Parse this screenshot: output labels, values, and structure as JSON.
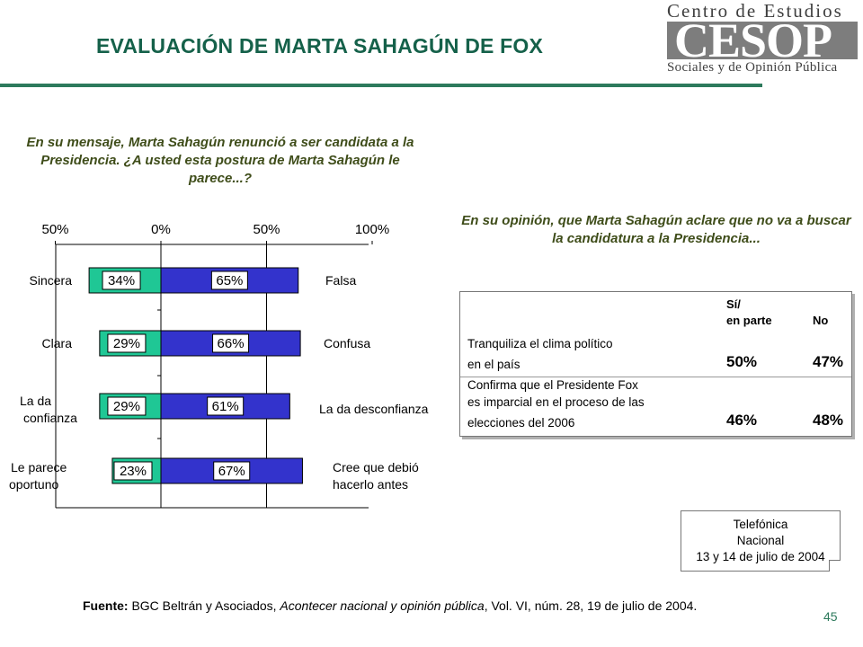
{
  "header": {
    "title": "EVALUACIÓN DE MARTA SAHAGÚN DE FOX",
    "logo_line1": "Centro de Estudios",
    "logo_mark": "CESOP",
    "logo_line2": "Sociales y de Opinión Pública"
  },
  "question_left": "En su mensaje, Marta Sahagún renunció a ser candidata a la Presidencia. ¿A usted esta postura de Marta Sahagún le parece...?",
  "question_right": "En su opinión, que Marta Sahagún aclare que no va a buscar la candidatura a la Presidencia...",
  "chart_data": {
    "type": "bar",
    "orientation": "horizontal-diverging",
    "axis_ticks": [
      "50%",
      "0%",
      "50%",
      "100%"
    ],
    "xlim": [
      -50,
      100
    ],
    "categories_left": [
      "Sincera",
      "Clara",
      "La da confianza",
      "Le parece oportuno"
    ],
    "categories_right": [
      "Falsa",
      "Confusa",
      "La da desconfianza",
      "Cree que debió hacerlo antes"
    ],
    "series": [
      {
        "values": [
          34,
          29,
          29,
          23
        ],
        "labels": [
          "34%",
          "29%",
          "29%",
          "23%"
        ],
        "color": "#1fc795"
      },
      {
        "values": [
          65,
          66,
          61,
          67
        ],
        "labels": [
          "65%",
          "66%",
          "61%",
          "67%"
        ],
        "color": "#3333cc"
      }
    ],
    "grid": true
  },
  "opinion_table": {
    "col_si": "Sí/",
    "col_si2": "en parte",
    "col_no": "No",
    "rows": [
      {
        "line1": "Tranquiliza el clima político",
        "line2": "en el país",
        "line3": "",
        "si": "50%",
        "no": "47%"
      },
      {
        "line1": "Confirma que el Presidente Fox",
        "line2": "es imparcial en el proceso de las",
        "line3": "elecciones del 2006",
        "si": "46%",
        "no": "48%"
      }
    ]
  },
  "source_box": {
    "line1": "Telefónica",
    "line2": "Nacional",
    "line3": "13 y 14 de julio de 2004"
  },
  "footnote": {
    "label": "Fuente:",
    "text1": " BGC Beltrán y Asociados, ",
    "italic": "Acontecer nacional y opinión pública",
    "text2": ", Vol. VI, núm. 28, 19 de julio de 2004."
  },
  "page_number": "45",
  "colors": {
    "accent": "#2d7a5c",
    "title": "#15614a",
    "positive": "#1fc795",
    "negative": "#3333cc"
  }
}
